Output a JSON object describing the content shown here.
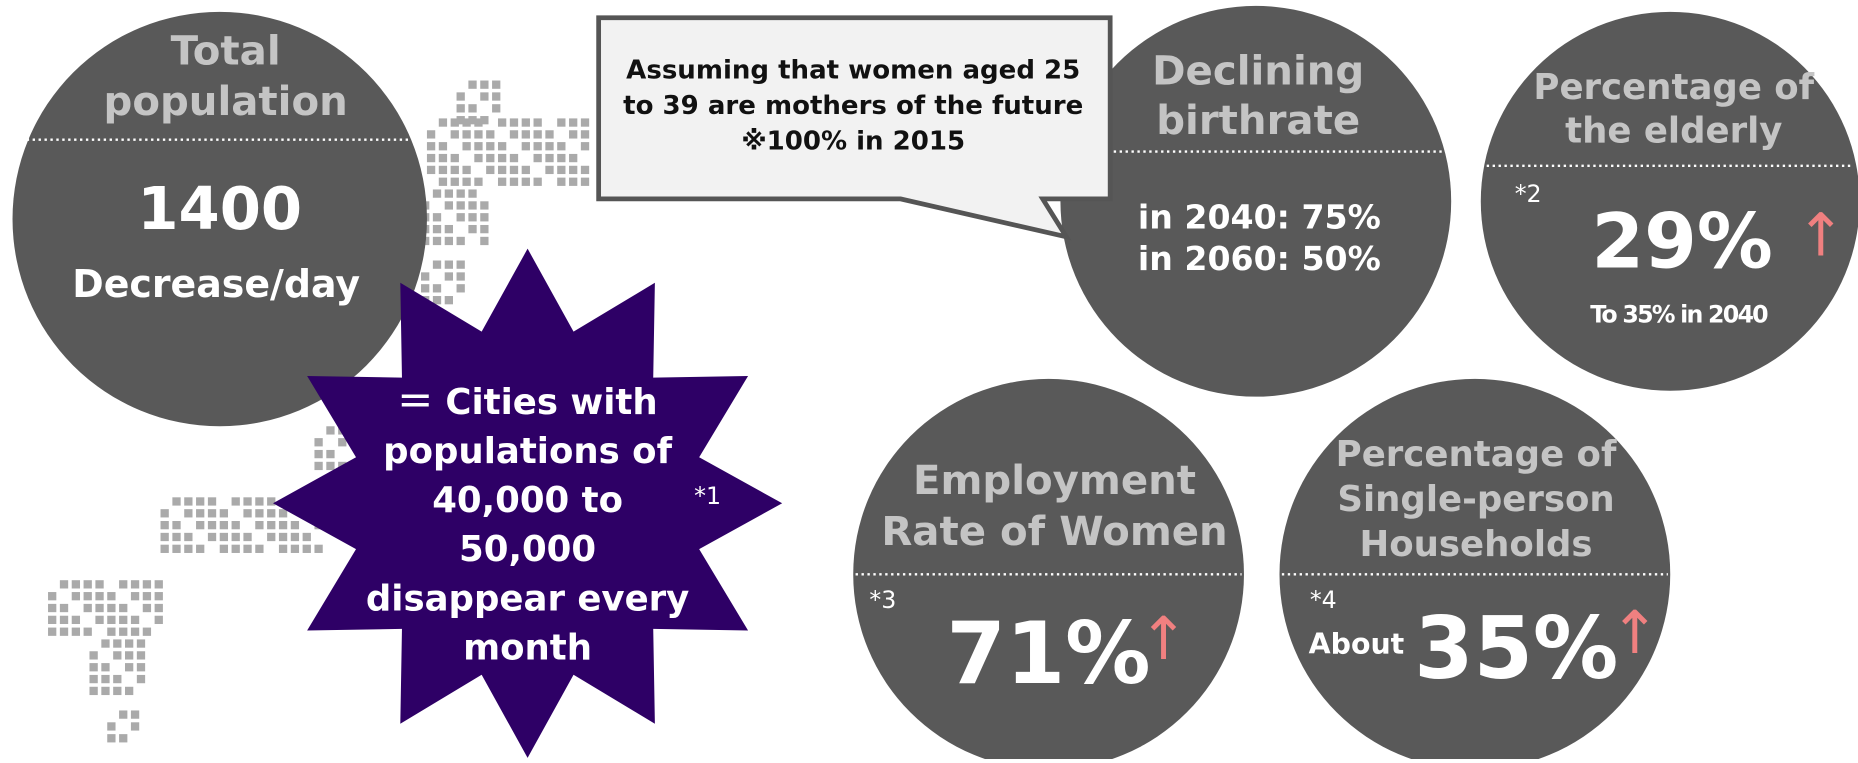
{
  "total_population": {
    "title": [
      "Total",
      "population"
    ],
    "value": "1400",
    "subtitle": "Decrease/day"
  },
  "starburst": {
    "lines": [
      "＝ Cities with",
      "populations of",
      "40,000 to",
      "50,000",
      "disappear every",
      "month"
    ],
    "note": "*1"
  },
  "callout": {
    "lines": [
      "Assuming that women aged 25",
      "to 39 are mothers of the future",
      "※100% in 2015"
    ]
  },
  "declining_birthrate": {
    "title": [
      "Declining",
      "birthrate"
    ],
    "lines": [
      "in 2040: 75%",
      "in 2060: 50%"
    ]
  },
  "elderly": {
    "title": [
      "Percentage of",
      "the elderly"
    ],
    "note": "*2",
    "value": "29%",
    "arrow": "↑",
    "subtitle": "To 35% in 2040"
  },
  "employment": {
    "title": [
      "Employment",
      "Rate of Women"
    ],
    "note": "*3",
    "value": "71%",
    "arrow": "↑"
  },
  "single_households": {
    "title": [
      "Percentage of",
      "Single-person",
      "Households"
    ],
    "note": "*4",
    "prefix": "About",
    "value": "35%",
    "arrow": "↑"
  }
}
